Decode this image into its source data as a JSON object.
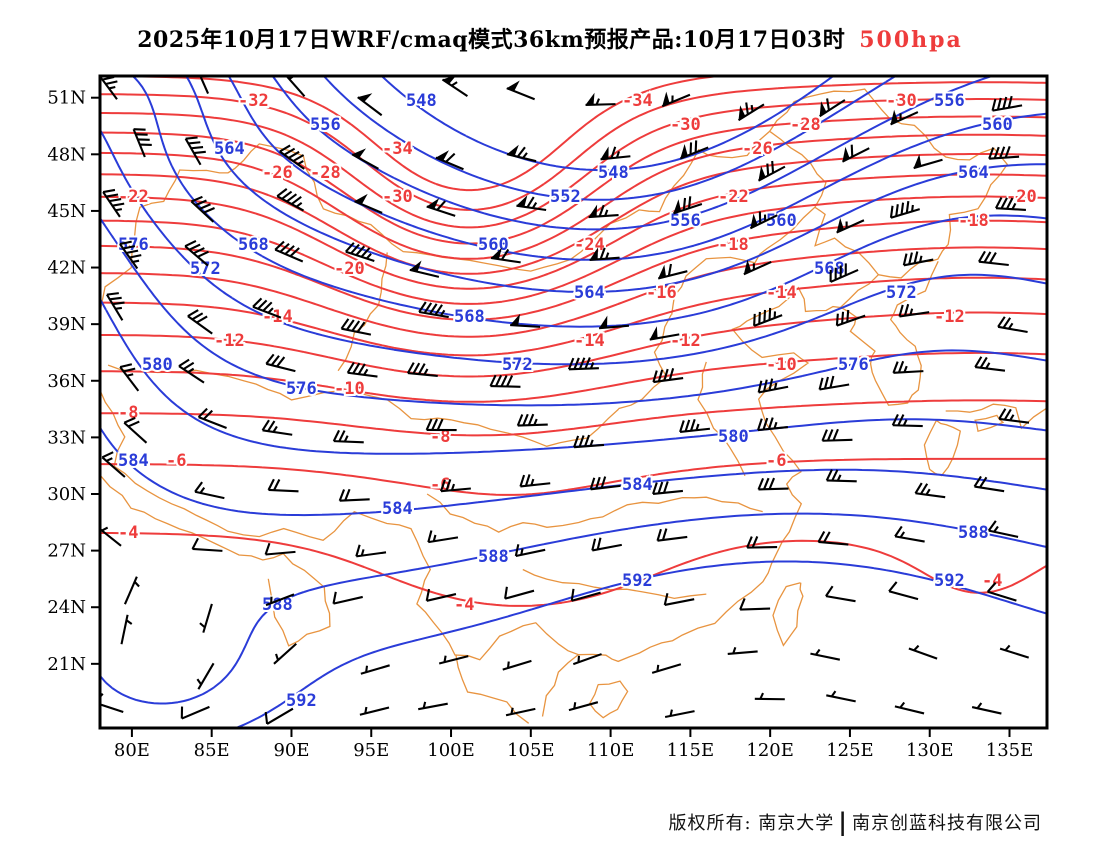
{
  "title": {
    "text": "2025年10月17日WRF/cmaq模式36km预报产品:10月17日03时",
    "level_tag": "500hpa"
  },
  "footer": {
    "copyright": "版权所有: 南京大学",
    "separator": "|",
    "company": "南京创蓝科技有限公司"
  },
  "axes": {
    "lat_labels": [
      "51N",
      "48N",
      "45N",
      "42N",
      "39N",
      "36N",
      "33N",
      "30N",
      "27N",
      "24N",
      "21N"
    ],
    "lon_labels": [
      "80E",
      "85E",
      "90E",
      "95E",
      "100E",
      "105E",
      "110E",
      "115E",
      "120E",
      "125E",
      "130E",
      "135E"
    ]
  },
  "chart_data": {
    "type": "contour-map",
    "description": "500hPa geopotential height (blue, dam) and temperature (red, degC) contours with black wind barbs over a map of China (orange borders)",
    "lon_range": [
      78.0,
      137.35
    ],
    "lat_range": [
      17.6,
      52.15
    ],
    "height_contours": {
      "color": "#2a3cd8",
      "units": "dam",
      "interval": 4,
      "levels": [
        548,
        552,
        556,
        560,
        564,
        568,
        572,
        576,
        580,
        584,
        588,
        592
      ]
    },
    "temperature_contours": {
      "color": "#ee3c3c",
      "units": "degC",
      "interval": 2,
      "levels": [
        -34,
        -32,
        -30,
        -28,
        -26,
        -24,
        -22,
        -20,
        -18,
        -16,
        -14,
        -12,
        -10,
        -8,
        -6,
        -4
      ]
    },
    "wind_barbs": {
      "color": "#000000",
      "units": "knots"
    },
    "map_borders_color": "#e89440",
    "visible_extreme_labels": {
      "cold_center": "-34",
      "height_min": "548",
      "height_max": "592"
    }
  }
}
